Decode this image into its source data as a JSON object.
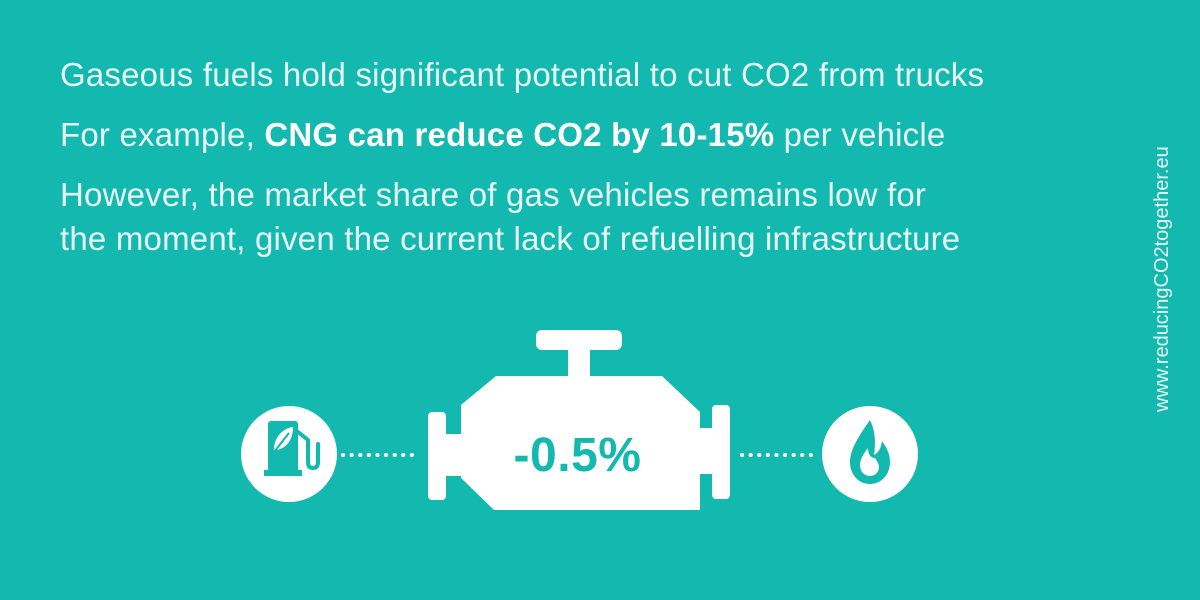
{
  "headline": {
    "line1": "Gaseous fuels hold significant potential to cut CO2 from trucks",
    "line2_prefix": "For example, ",
    "line2_strong": "CNG can reduce CO2 by 10-15%",
    "line2_suffix": " per vehicle",
    "line3": "However, the market share of gas vehicles remains low for",
    "line4": "the moment, given the current lack of refuelling infrastructure"
  },
  "engine": {
    "value_label": "-0.5%"
  },
  "icons": {
    "left": "green-fuel-pump-icon",
    "center": "engine-icon",
    "right": "gas-flame-icon"
  },
  "side_text": "www.reducingCO2together.eu",
  "colors": {
    "background": "#13b8af",
    "foreground": "#ffffff"
  }
}
